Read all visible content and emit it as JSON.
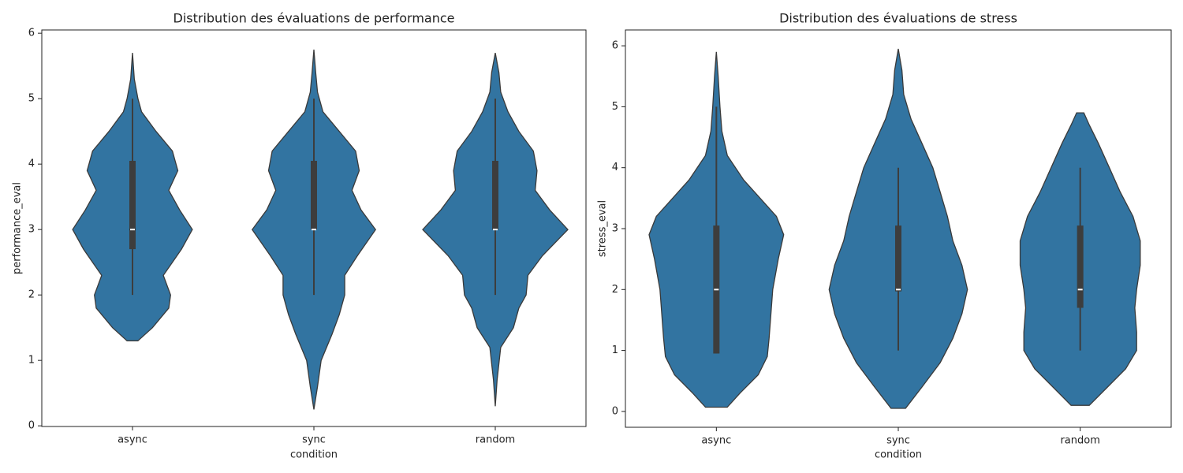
{
  "chart_data": [
    {
      "type": "violin",
      "title": "Distribution des évaluations de performance",
      "xlabel": "condition",
      "ylabel": "performance_eval",
      "categories": [
        "async",
        "sync",
        "random"
      ],
      "color": "#3274a1",
      "ylim": [
        -0.01,
        6.05
      ],
      "yticks": [
        0,
        1,
        2,
        3,
        4,
        5,
        6
      ],
      "violins": [
        {
          "y": [
            1.3,
            1.5,
            1.8,
            2.0,
            2.3,
            2.5,
            2.7,
            3.0,
            3.3,
            3.6,
            3.9,
            4.2,
            4.5,
            4.8,
            5.0,
            5.3,
            5.7
          ],
          "density": [
            0.03,
            0.11,
            0.2,
            0.21,
            0.17,
            0.22,
            0.27,
            0.33,
            0.26,
            0.2,
            0.25,
            0.22,
            0.13,
            0.05,
            0.03,
            0.01,
            0
          ],
          "box": [
            2.7,
            4.05
          ],
          "median": 3,
          "whisker": [
            2,
            5
          ]
        },
        {
          "y": [
            0.25,
            0.6,
            1.0,
            1.4,
            1.7,
            2.0,
            2.3,
            2.6,
            3.0,
            3.3,
            3.6,
            3.9,
            4.2,
            4.5,
            4.8,
            5.1,
            5.4,
            5.75
          ],
          "density": [
            0,
            0.02,
            0.04,
            0.1,
            0.14,
            0.17,
            0.17,
            0.24,
            0.34,
            0.26,
            0.21,
            0.25,
            0.23,
            0.14,
            0.05,
            0.02,
            0.01,
            0
          ],
          "box": [
            3,
            4.05
          ],
          "median": 3,
          "whisker": [
            2,
            5
          ]
        },
        {
          "y": [
            0.3,
            0.7,
            1.2,
            1.5,
            1.8,
            2.0,
            2.3,
            2.6,
            3.0,
            3.3,
            3.6,
            3.9,
            4.2,
            4.5,
            4.8,
            5.1,
            5.4,
            5.7
          ],
          "density": [
            0,
            0.01,
            0.03,
            0.1,
            0.13,
            0.17,
            0.18,
            0.26,
            0.4,
            0.3,
            0.22,
            0.23,
            0.21,
            0.13,
            0.07,
            0.03,
            0.02,
            0
          ],
          "box": [
            3,
            4.05
          ],
          "median": 3,
          "whisker": [
            2,
            5
          ]
        }
      ]
    },
    {
      "type": "violin",
      "title": "Distribution des évaluations de stress",
      "xlabel": "condition",
      "ylabel": "stress_eval",
      "categories": [
        "async",
        "sync",
        "random"
      ],
      "color": "#3274a1",
      "ylim": [
        -0.26,
        6.26
      ],
      "yticks": [
        0,
        1,
        2,
        3,
        4,
        5,
        6
      ],
      "violins": [
        {
          "y": [
            0.07,
            0.3,
            0.6,
            0.9,
            1.2,
            1.6,
            2.0,
            2.5,
            2.9,
            3.2,
            3.5,
            3.8,
            4.2,
            4.6,
            5.0,
            5.5,
            5.9
          ],
          "density": [
            0.06,
            0.13,
            0.23,
            0.28,
            0.29,
            0.3,
            0.31,
            0.34,
            0.37,
            0.33,
            0.24,
            0.15,
            0.06,
            0.03,
            0.02,
            0.01,
            0
          ],
          "box": [
            0.95,
            3.05
          ],
          "median": 2,
          "whisker": [
            0.95,
            5
          ]
        },
        {
          "y": [
            0.05,
            0.4,
            0.8,
            1.2,
            1.6,
            2.0,
            2.4,
            2.8,
            3.2,
            3.6,
            4.0,
            4.4,
            4.8,
            5.2,
            5.6,
            5.95
          ],
          "density": [
            0.04,
            0.13,
            0.23,
            0.3,
            0.35,
            0.38,
            0.35,
            0.3,
            0.27,
            0.23,
            0.19,
            0.13,
            0.07,
            0.03,
            0.02,
            0
          ],
          "box": [
            1.97,
            3.05
          ],
          "median": 2,
          "whisker": [
            1,
            4
          ]
        },
        {
          "y": [
            0.1,
            0.4,
            0.7,
            1.0,
            1.3,
            1.7,
            2.0,
            2.4,
            2.8,
            3.2,
            3.6,
            4.0,
            4.4,
            4.7,
            4.9
          ],
          "density": [
            0.05,
            0.15,
            0.25,
            0.31,
            0.31,
            0.3,
            0.31,
            0.33,
            0.33,
            0.29,
            0.22,
            0.16,
            0.1,
            0.05,
            0.02
          ],
          "box": [
            1.7,
            3.05
          ],
          "median": 2,
          "whisker": [
            1,
            4
          ]
        }
      ]
    }
  ]
}
